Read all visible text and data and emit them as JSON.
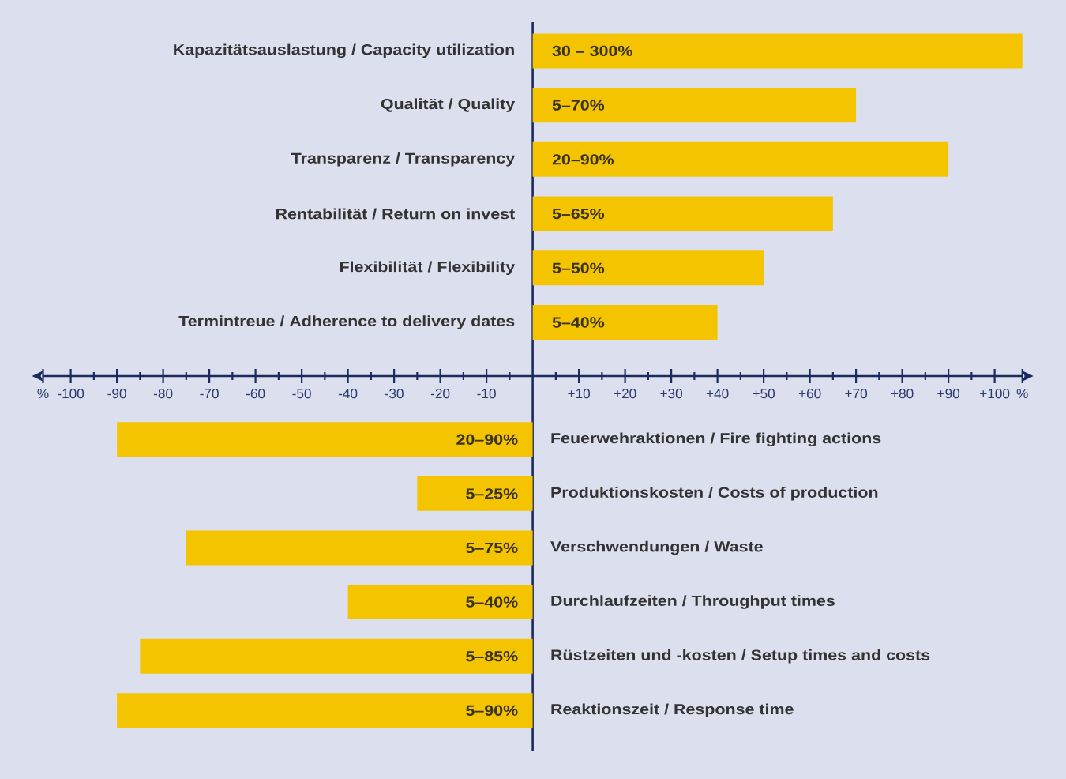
{
  "chart_data": [
    {
      "type": "bar",
      "orientation": "horizontal",
      "categories": [
        "Kapazitätsauslastung / Capacity utilization",
        "Qualität / Quality",
        "Transparenz / Transparency",
        "Rentabilität / Return on invest",
        "Flexibilität / Flexibility",
        "Termintreue / Adherence to delivery dates"
      ],
      "values": [
        106,
        70,
        90,
        65,
        50,
        40
      ],
      "annotations": [
        {
          "text": "30 – 300%",
          "y": "Kapazitätsauslastung / Capacity utilization"
        },
        {
          "text": "5–70%",
          "y": "Qualität / Quality"
        },
        {
          "text": "20–90%",
          "y": "Transparenz / Transparency"
        },
        {
          "text": "5–65%",
          "y": "Rentabilität / Return on invest"
        },
        {
          "text": "5–50%",
          "y": "Flexibilität / Flexibility"
        },
        {
          "text": "5–40%",
          "y": "Termintreue / Adherence to delivery dates"
        }
      ],
      "color": "#f5c400",
      "xlim": [
        -106,
        106
      ],
      "xticks": [
        {
          "value": -106,
          "label": "%"
        },
        -100,
        {
          "value": -95,
          "label": null
        },
        -90,
        {
          "value": -85,
          "label": null
        },
        -80,
        {
          "value": -75,
          "label": null
        },
        -70,
        {
          "value": -65,
          "label": null
        },
        -60,
        {
          "value": -55,
          "label": null
        },
        -50,
        {
          "value": -45,
          "label": null
        },
        -40,
        {
          "value": -35,
          "label": null
        },
        -30,
        {
          "value": -25,
          "label": null
        },
        -20,
        {
          "value": -15,
          "label": null
        },
        -10,
        {
          "value": -5,
          "label": null
        },
        {
          "value": 5,
          "label": null
        },
        {
          "value": 10,
          "label": "+10"
        },
        {
          "value": 15,
          "label": null
        },
        {
          "value": 20,
          "label": "+20"
        },
        {
          "value": 25,
          "label": null
        },
        {
          "value": 30,
          "label": "+30"
        },
        {
          "value": 35,
          "label": null
        },
        {
          "value": 40,
          "label": "+40"
        },
        {
          "value": 45,
          "label": null
        },
        {
          "value": 50,
          "label": "+50"
        },
        {
          "value": 55,
          "label": null
        },
        {
          "value": 60,
          "label": "+60"
        },
        {
          "value": 65,
          "label": null
        },
        {
          "value": 70,
          "label": "+70"
        },
        {
          "value": 75,
          "label": null
        },
        {
          "value": 80,
          "label": "+80"
        },
        {
          "value": 85,
          "label": null
        },
        {
          "value": 90,
          "label": "+90"
        },
        {
          "value": 95,
          "label": null
        },
        {
          "value": 100,
          "label": "+100"
        },
        {
          "value": 106,
          "label": "%"
        }
      ]
    },
    {
      "type": "bar",
      "orientation": "horizontal",
      "categories": [
        "Feuerwehraktionen / Fire fighting actions",
        "Produktionskosten / Costs of production",
        "Verschwendungen / Waste",
        "Durchlaufzeiten / Throughput times",
        "Rüstzeiten und -kosten / Setup times and costs",
        "Reaktionszeit / Response time"
      ],
      "values": [
        -90,
        -25,
        -75,
        -40,
        -85,
        -90
      ],
      "annotations": [
        {
          "text": "20–90%",
          "y": "Feuerwehraktionen / Fire fighting actions"
        },
        {
          "text": "5–25%",
          "y": "Produktionskosten / Costs of production"
        },
        {
          "text": "5–75%",
          "y": "Verschwendungen / Waste"
        },
        {
          "text": "5–40%",
          "y": "Durchlaufzeiten / Throughput times"
        },
        {
          "text": "5–85%",
          "y": "Rüstzeiten und -kosten / Setup times and costs"
        },
        {
          "text": "5–90%",
          "y": "Reaktionszeit / Response time"
        }
      ],
      "color": "#f5c400",
      "xlim": [
        -106,
        106
      ],
      "tick_labels": "y"
    }
  ]
}
